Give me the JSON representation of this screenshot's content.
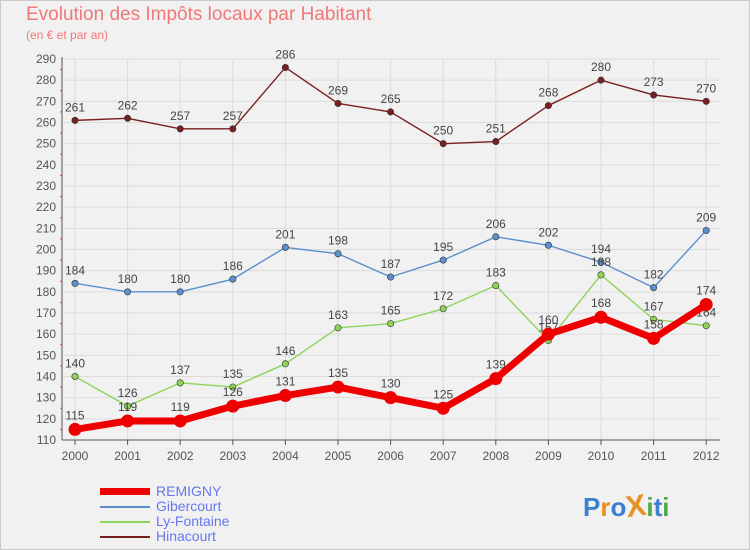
{
  "header": {
    "title": "Evolution des Impôts locaux par Habitant",
    "subtitle": "(en € et par an)"
  },
  "colors": {
    "title": "#f07878",
    "grid": "#dcdcdc",
    "axis": "#555555",
    "label_text": "#444444",
    "legend_text": "#6677ee"
  },
  "chart_data": {
    "type": "line",
    "x": [
      "2000",
      "2001",
      "2002",
      "2003",
      "2004",
      "2005",
      "2006",
      "2007",
      "2008",
      "2009",
      "2010",
      "2011",
      "2012"
    ],
    "ylim": [
      110,
      290
    ],
    "yticks": [
      110,
      120,
      130,
      140,
      150,
      160,
      170,
      180,
      190,
      200,
      210,
      220,
      230,
      240,
      250,
      260,
      270,
      280,
      290
    ],
    "grid": true,
    "legend_position": "bottom-left",
    "series": [
      {
        "name": "Hinacourt",
        "color": "#7a1f1f",
        "values": [
          261,
          262,
          257,
          257,
          286,
          269,
          265,
          250,
          251,
          268,
          280,
          273,
          270
        ]
      },
      {
        "name": "Gibercourt",
        "color": "#5a8fcc",
        "values": [
          184,
          180,
          180,
          186,
          201,
          198,
          187,
          195,
          206,
          202,
          194,
          182,
          209
        ]
      },
      {
        "name": "Ly-Fontaine",
        "color": "#8ed45a",
        "values": [
          140,
          126,
          137,
          135,
          146,
          163,
          165,
          172,
          183,
          157,
          188,
          167,
          164
        ]
      },
      {
        "name": "REMIGNY",
        "color": "#ee0000",
        "values": [
          115,
          119,
          119,
          126,
          131,
          135,
          130,
          125,
          139,
          160,
          168,
          158,
          174
        ]
      }
    ]
  },
  "legend": {
    "items": [
      {
        "label": "REMIGNY",
        "color": "#ee0000"
      },
      {
        "label": "Gibercourt",
        "color": "#5a8fcc"
      },
      {
        "label": "Ly-Fontaine",
        "color": "#8ed45a"
      },
      {
        "label": "Hinacourt",
        "color": "#7a1f1f"
      }
    ]
  },
  "logo": {
    "text": "Proxiti",
    "letters": [
      {
        "ch": "P",
        "color": "#3a7fd0"
      },
      {
        "ch": "r",
        "color": "#e89020"
      },
      {
        "ch": "o",
        "color": "#3a7fd0"
      },
      {
        "ch": "X",
        "color": "#e89020"
      },
      {
        "ch": "i",
        "color": "#50a848"
      },
      {
        "ch": "t",
        "color": "#3a7fd0"
      },
      {
        "ch": "i",
        "color": "#50a848"
      }
    ]
  }
}
